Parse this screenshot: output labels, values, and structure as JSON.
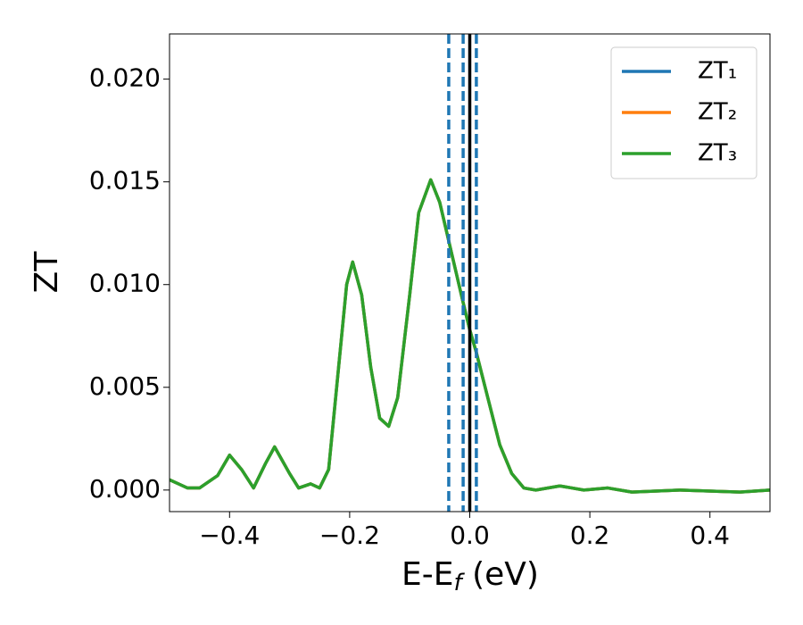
{
  "chart_data": {
    "type": "line",
    "ylabel": "ZT",
    "xlabel": {
      "text": "E-E",
      "sub": "f",
      "after": " (eV)"
    },
    "xlim": [
      -0.5,
      0.5
    ],
    "ylim": [
      -0.00105,
      0.0222
    ],
    "xticks": [
      {
        "value": -0.4,
        "label": "−0.4"
      },
      {
        "value": -0.2,
        "label": "−0.2"
      },
      {
        "value": 0.0,
        "label": "0.0"
      },
      {
        "value": 0.2,
        "label": "0.2"
      },
      {
        "value": 0.4,
        "label": "0.4"
      }
    ],
    "yticks": [
      {
        "value": 0.0,
        "label": "0.000"
      },
      {
        "value": 0.005,
        "label": "0.005"
      },
      {
        "value": 0.01,
        "label": "0.010"
      },
      {
        "value": 0.015,
        "label": "0.015"
      },
      {
        "value": 0.02,
        "label": "0.020"
      }
    ],
    "legend": "upper right",
    "vlines": [
      {
        "x": -0.035,
        "color": "#1f77b4",
        "style": "dashed"
      },
      {
        "x": -0.011,
        "color": "#1f77b4",
        "style": "dashed"
      },
      {
        "x": 0.011,
        "color": "#1f77b4",
        "style": "dashed"
      },
      {
        "x": 0.0,
        "color": "#000000",
        "style": "solid"
      }
    ],
    "x": [
      -0.5,
      -0.47,
      -0.45,
      -0.42,
      -0.4,
      -0.38,
      -0.36,
      -0.34,
      -0.325,
      -0.3,
      -0.285,
      -0.265,
      -0.25,
      -0.235,
      -0.22,
      -0.205,
      -0.195,
      -0.18,
      -0.165,
      -0.15,
      -0.135,
      -0.12,
      -0.1,
      -0.085,
      -0.065,
      -0.05,
      -0.03,
      -0.01,
      0.0,
      0.01,
      0.03,
      0.05,
      0.07,
      0.09,
      0.11,
      0.15,
      0.19,
      0.23,
      0.27,
      0.35,
      0.45,
      0.5
    ],
    "series": [
      {
        "name": "ZT₁",
        "color": "#1f77b4",
        "values": [
          0.0005,
          0.0001,
          0.0001,
          0.0007,
          0.0017,
          0.001,
          0.0001,
          0.0013,
          0.0021,
          0.0008,
          0.0001,
          0.0003,
          0.0001,
          0.001,
          0.0055,
          0.01,
          0.0111,
          0.0095,
          0.006,
          0.0035,
          0.0031,
          0.0045,
          0.0095,
          0.0135,
          0.0151,
          0.014,
          0.0115,
          0.009,
          0.0078,
          0.0068,
          0.0045,
          0.0022,
          0.0008,
          0.0001,
          0.0,
          0.0002,
          0.0,
          0.0001,
          -0.0001,
          0.0,
          -0.0001,
          0.0
        ]
      },
      {
        "name": "ZT₂",
        "color": "#ff7f0e",
        "values": [
          0.0005,
          0.0001,
          0.0001,
          0.0007,
          0.0017,
          0.001,
          0.0001,
          0.0013,
          0.0021,
          0.0008,
          0.0001,
          0.0003,
          0.0001,
          0.001,
          0.0055,
          0.01,
          0.0111,
          0.0095,
          0.006,
          0.0035,
          0.0031,
          0.0045,
          0.0095,
          0.0135,
          0.0151,
          0.014,
          0.0115,
          0.009,
          0.0078,
          0.0068,
          0.0045,
          0.0022,
          0.0008,
          0.0001,
          0.0,
          0.0002,
          0.0,
          0.0001,
          -0.0001,
          0.0,
          -0.0001,
          0.0
        ]
      },
      {
        "name": "ZT₃",
        "color": "#2ca02c",
        "values": [
          0.0005,
          0.0001,
          0.0001,
          0.0007,
          0.0017,
          0.001,
          0.0001,
          0.0013,
          0.0021,
          0.0008,
          0.0001,
          0.0003,
          0.0001,
          0.001,
          0.0055,
          0.01,
          0.0111,
          0.0095,
          0.006,
          0.0035,
          0.0031,
          0.0045,
          0.0095,
          0.0135,
          0.0151,
          0.014,
          0.0115,
          0.009,
          0.0078,
          0.0068,
          0.0045,
          0.0022,
          0.0008,
          0.0001,
          0.0,
          0.0002,
          0.0,
          0.0001,
          -0.0001,
          0.0,
          -0.0001,
          0.0
        ]
      }
    ]
  }
}
